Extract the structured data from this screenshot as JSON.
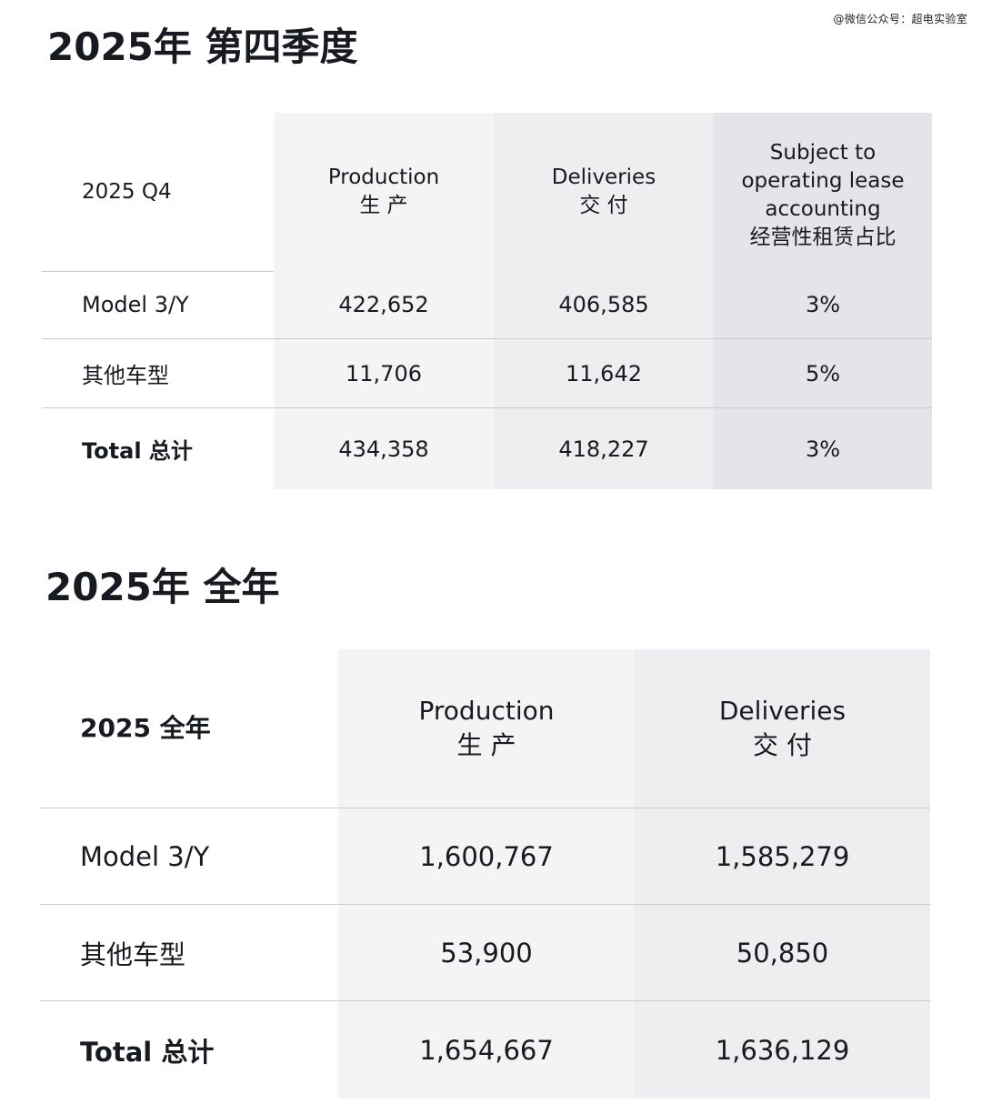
{
  "watermark": "@微信公众号：超电实验室",
  "q4": {
    "title": "2025年 第四季度",
    "header": {
      "label": "2025 Q4",
      "production": [
        "Production",
        "生 产"
      ],
      "deliveries": [
        "Deliveries",
        "交 付"
      ],
      "lease": [
        "Subject to",
        "operating lease",
        "accounting",
        "经营性租赁占比"
      ]
    },
    "rows": [
      {
        "label": "Model 3/Y",
        "production": "422,652",
        "deliveries": "406,585",
        "lease": "3%"
      },
      {
        "label": "其他车型",
        "production": "11,706",
        "deliveries": "11,642",
        "lease": "5%"
      },
      {
        "label": "Total 总计",
        "production": "434,358",
        "deliveries": "418,227",
        "lease": "3%"
      }
    ]
  },
  "full_year": {
    "title": "2025年 全年",
    "header": {
      "label": "2025 全年",
      "production": [
        "Production",
        "生 产"
      ],
      "deliveries": [
        "Deliveries",
        "交 付"
      ]
    },
    "rows": [
      {
        "label": "Model 3/Y",
        "production": "1,600,767",
        "deliveries": "1,585,279"
      },
      {
        "label": "其他车型",
        "production": "53,900",
        "deliveries": "50,850"
      },
      {
        "label": "Total 总计",
        "production": "1,654,667",
        "deliveries": "1,636,129"
      }
    ]
  }
}
